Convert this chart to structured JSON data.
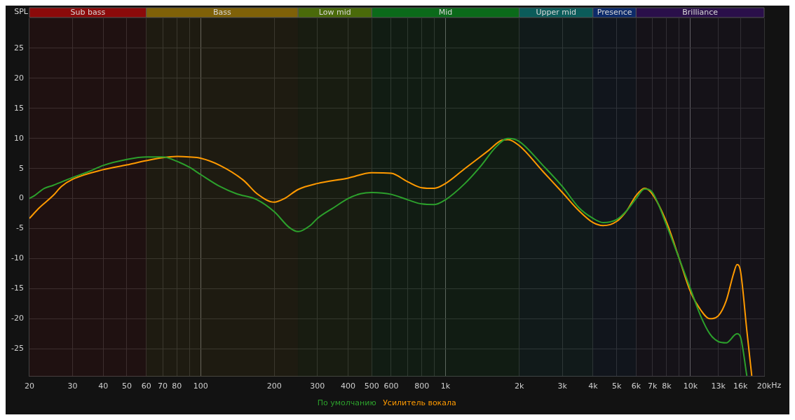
{
  "chart_data": {
    "type": "line",
    "ylabel": "SPL",
    "xlabel": "Hz",
    "log": "x",
    "xlim": [
      20,
      20000
    ],
    "ylim": [
      -29.6,
      30
    ],
    "xticks": [
      20,
      30,
      40,
      50,
      60,
      70,
      80,
      {
        "value": 90,
        "label": null
      },
      100,
      200,
      300,
      400,
      500,
      600,
      {
        "value": 700,
        "label": null
      },
      800,
      {
        "value": 900,
        "label": null
      },
      {
        "value": 1000,
        "label": "1k"
      },
      {
        "value": 2000,
        "label": "2k"
      },
      {
        "value": 3000,
        "label": "3k"
      },
      {
        "value": 4000,
        "label": "4k"
      },
      {
        "value": 5000,
        "label": "5k"
      },
      {
        "value": 6000,
        "label": "6k"
      },
      {
        "value": 7000,
        "label": "7k"
      },
      {
        "value": 8000,
        "label": "8k"
      },
      {
        "value": 9000,
        "label": null
      },
      {
        "value": 10000,
        "label": "10k"
      },
      {
        "value": 13000,
        "label": "13k"
      },
      {
        "value": 16000,
        "label": "16k"
      },
      {
        "value": 20000,
        "label": "20k"
      }
    ],
    "yticks": [
      -25,
      -20,
      -15,
      -10,
      -5,
      0,
      5,
      10,
      15,
      20,
      25
    ],
    "grid": true,
    "legend": "bottom",
    "marker": "none",
    "line_style": "solid",
    "bands": [
      {
        "axis": "x",
        "from": 20,
        "to": 60,
        "label": "Sub bass",
        "color": "#8b0a0a"
      },
      {
        "axis": "x",
        "from": 60,
        "to": 250,
        "label": "Bass",
        "color": "#7f6108"
      },
      {
        "axis": "x",
        "from": 250,
        "to": 500,
        "label": "Low mid",
        "color": "#4a6a0a"
      },
      {
        "axis": "x",
        "from": 500,
        "to": 2000,
        "label": "Mid",
        "color": "#0b6a1a"
      },
      {
        "axis": "x",
        "from": 2000,
        "to": 4000,
        "label": "Upper mid",
        "color": "#0b5c5a"
      },
      {
        "axis": "x",
        "from": 4000,
        "to": 6000,
        "label": "Presence",
        "color": "#0c2a6a"
      },
      {
        "axis": "x",
        "from": 6000,
        "to": 20000,
        "label": "Brilliance",
        "color": "#2a0f4a"
      }
    ],
    "series": [
      {
        "name": "По умолчанию",
        "color": "#2ca02c",
        "x": [
          20,
          21,
          23,
          25,
          30,
          35,
          40,
          50,
          60,
          70,
          80,
          90,
          100,
          120,
          140,
          170,
          200,
          230,
          250,
          280,
          300,
          350,
          400,
          450,
          500,
          600,
          700,
          800,
          900,
          1000,
          1200,
          1400,
          1600,
          1800,
          2000,
          2500,
          3000,
          3500,
          4000,
          4400,
          5000,
          5500,
          6000,
          6500,
          7000,
          8000,
          9000,
          10000,
          11000,
          12000,
          13000,
          14000,
          15500,
          16000,
          17000
        ],
        "values": [
          0,
          0.5,
          1.7,
          2.2,
          3.5,
          4.5,
          5.5,
          6.5,
          6.9,
          6.9,
          6.2,
          5.2,
          4.0,
          2.0,
          0.8,
          -0.2,
          -2.2,
          -4.8,
          -5.5,
          -4.5,
          -3.3,
          -1.5,
          0,
          0.8,
          1.0,
          0.7,
          -0.2,
          -0.9,
          -1.0,
          -0.2,
          2.5,
          5.5,
          8.5,
          10.0,
          9.5,
          5.5,
          2.0,
          -1.5,
          -3.3,
          -4.0,
          -3.5,
          -2.0,
          0,
          1.6,
          1.0,
          -4.5,
          -10,
          -15,
          -19.5,
          -22.5,
          -23.8,
          -24,
          -22.5,
          -23,
          -29.5
        ]
      },
      {
        "name": "Усилитель вокала",
        "color": "#ff9a00",
        "x": [
          20,
          22,
          25,
          27,
          30,
          40,
          50,
          60,
          70,
          80,
          90,
          100,
          120,
          150,
          170,
          200,
          220,
          250,
          300,
          400,
          500,
          600,
          700,
          800,
          900,
          1000,
          1200,
          1500,
          1700,
          1800,
          2000,
          2500,
          3000,
          3500,
          4000,
          4400,
          5000,
          5500,
          6000,
          6500,
          7000,
          8000,
          9000,
          10000,
          11000,
          12000,
          13000,
          14000,
          15000,
          15500,
          16000,
          17000,
          17800
        ],
        "values": [
          -3.3,
          -1.5,
          0.5,
          2.0,
          3.2,
          4.8,
          5.6,
          6.3,
          6.8,
          7.0,
          6.9,
          6.7,
          5.5,
          3.0,
          0.8,
          -0.6,
          0.0,
          1.5,
          2.5,
          3.4,
          4.3,
          4.2,
          2.8,
          1.8,
          1.7,
          2.5,
          5.0,
          8.0,
          9.7,
          9.8,
          8.8,
          4.5,
          1.0,
          -2.0,
          -4.0,
          -4.5,
          -3.8,
          -2.0,
          0.5,
          1.7,
          0.7,
          -4.0,
          -10,
          -15.5,
          -18.5,
          -20,
          -19.5,
          -17,
          -12.5,
          -11,
          -12,
          -22,
          -29.5
        ]
      }
    ]
  }
}
